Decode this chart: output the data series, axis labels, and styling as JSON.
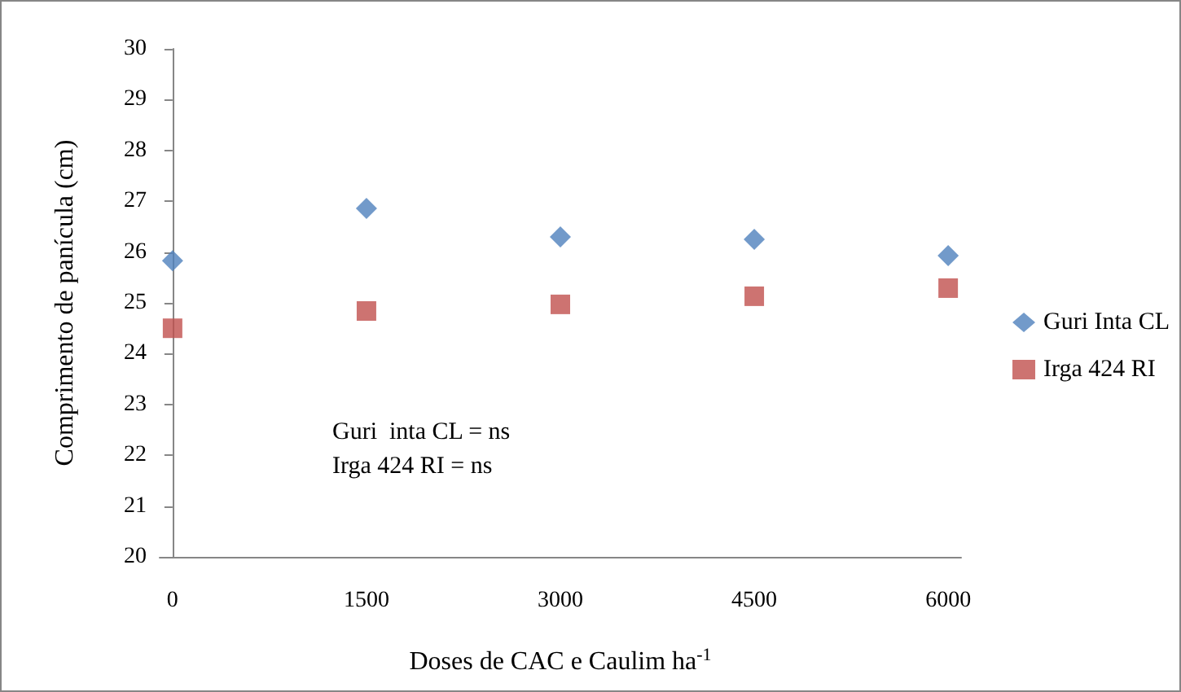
{
  "chart_data": {
    "type": "scatter",
    "xlabel": "Doses de CAC e Caulim ha$^{-1}$",
    "ylabel": "Comprimento de panícula (cm)",
    "x": [
      0,
      1500,
      3000,
      4500,
      6000
    ],
    "series": [
      {
        "name": "Guri Inta CL",
        "color": "#4f81bd",
        "marker": "diamond",
        "values": [
          25.83,
          26.86,
          26.3,
          26.25,
          25.93
        ]
      },
      {
        "name": "Irga 424 RI",
        "color": "#c0504d",
        "marker": "square",
        "values": [
          24.5,
          24.84,
          24.97,
          25.13,
          25.29
        ]
      }
    ],
    "xlim": [
      -100,
      6100
    ],
    "xticks": [
      0,
      1500,
      3000,
      4500,
      6000
    ],
    "ylim": [
      20,
      30
    ],
    "yticks": [
      20,
      21,
      22,
      23,
      24,
      25,
      26,
      27,
      28,
      29,
      30
    ],
    "annotations": [
      "Guri  inta CL = ns",
      "Irga 424 RI = ns"
    ],
    "legend": "right",
    "grid": false
  }
}
